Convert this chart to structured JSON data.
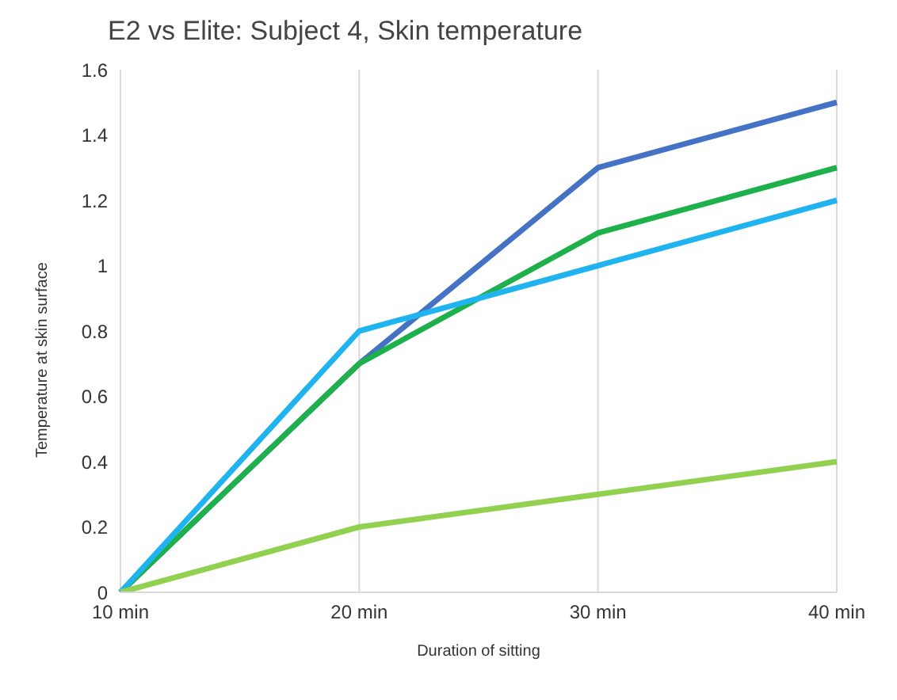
{
  "chart_data": {
    "type": "line",
    "title": "E2 vs Elite: Subject 4, Skin temperature",
    "xlabel": "Duration of sitting",
    "ylabel": "Temperature at skin surface",
    "categories": [
      "10 min",
      "20 min",
      "30 min",
      "40 min"
    ],
    "series": [
      {
        "color": "#4472c4",
        "values": [
          0,
          0.7,
          1.3,
          1.5
        ]
      },
      {
        "color": "#1eb04b",
        "values": [
          0,
          0.7,
          1.1,
          1.3
        ]
      },
      {
        "color": "#1fb4ef",
        "values": [
          0,
          0.8,
          1.0,
          1.2
        ]
      },
      {
        "color": "#92d050",
        "values": [
          0,
          0.2,
          0.3,
          0.4
        ]
      }
    ],
    "ylim": [
      0,
      1.6
    ],
    "yticks": [
      0,
      0.2,
      0.4,
      0.6,
      0.8,
      1,
      1.2,
      1.4,
      1.6
    ],
    "grid": "x",
    "legend": false,
    "marker": "none",
    "line_style": "solid"
  }
}
